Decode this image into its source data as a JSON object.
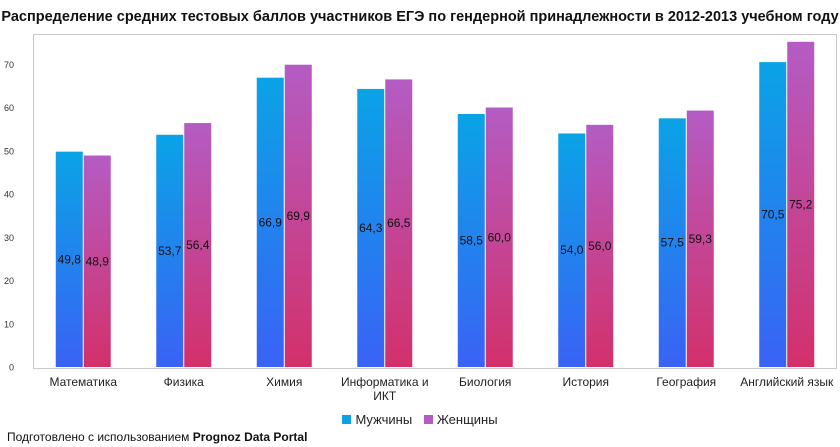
{
  "chart_data": {
    "type": "bar",
    "title": "Распределение средних тестовых баллов участников ЕГЭ по гендерной принадлежности в 2012-2013 учебном году",
    "categories": [
      "Математика",
      "Физика",
      "Химия",
      "Информатика и ИКТ",
      "Биология",
      "История",
      "География",
      "Английский язык"
    ],
    "category_lines": [
      [
        "Математика"
      ],
      [
        "Физика"
      ],
      [
        "Химия"
      ],
      [
        "Информатика и",
        "ИКТ"
      ],
      [
        "Биология"
      ],
      [
        "История"
      ],
      [
        "География"
      ],
      [
        "Английский язык"
      ]
    ],
    "series": [
      {
        "name": "Мужчины",
        "values": [
          49.8,
          53.7,
          66.9,
          64.3,
          58.5,
          54.0,
          57.5,
          70.5
        ],
        "labels": [
          "49,8",
          "53,7",
          "66,9",
          "64,3",
          "58,5",
          "54,0",
          "57,5",
          "70,5"
        ],
        "color_top": "#0aa3e6",
        "color_bottom": "#3a62f5"
      },
      {
        "name": "Женщины",
        "values": [
          48.9,
          56.4,
          69.9,
          66.5,
          60.0,
          56.0,
          59.3,
          75.2
        ],
        "labels": [
          "48,9",
          "56,4",
          "69,9",
          "66,5",
          "60,0",
          "56,0",
          "59,3",
          "75,2"
        ],
        "color_top": "#b45cc4",
        "color_bottom": "#d3306a"
      }
    ],
    "ylim": [
      0,
      77
    ],
    "yticks": [
      0,
      10,
      20,
      30,
      40,
      50,
      60,
      70
    ],
    "xlabel": "",
    "ylabel": "",
    "grid": false,
    "legend_position": "bottom-center"
  },
  "footer": {
    "prefix": "Подготовлено с использованием ",
    "brand": "Prognoz Data Portal"
  }
}
